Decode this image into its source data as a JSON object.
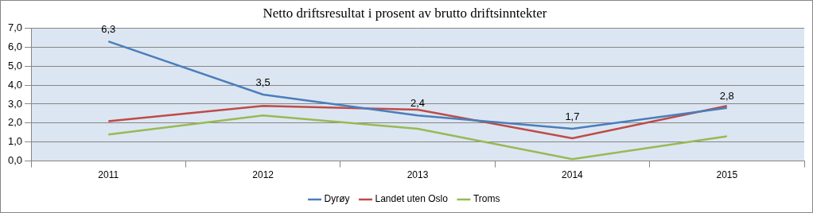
{
  "chart_data": {
    "type": "line",
    "title": "Netto driftsresultat i prosent av brutto driftsinntekter",
    "categories": [
      "2011",
      "2012",
      "2013",
      "2014",
      "2015"
    ],
    "series": [
      {
        "name": "Dyrøy",
        "color": "#4a7ebb",
        "values": [
          6.3,
          3.5,
          2.4,
          1.7,
          2.8
        ],
        "data_labels": true,
        "value_labels": [
          "6,3",
          "3,5",
          "2,4",
          "1,7",
          "2,8"
        ]
      },
      {
        "name": "Landet uten Oslo",
        "color": "#be4b48",
        "values": [
          2.1,
          2.9,
          2.7,
          1.2,
          2.9
        ]
      },
      {
        "name": "Troms",
        "color": "#98b954",
        "values": [
          1.4,
          2.4,
          1.7,
          0.1,
          1.3
        ]
      }
    ],
    "ylim": [
      0,
      7
    ],
    "yticks": [
      {
        "value": 0,
        "label": "0,0"
      },
      {
        "value": 1,
        "label": "1,0"
      },
      {
        "value": 2,
        "label": "2,0"
      },
      {
        "value": 3,
        "label": "3,0"
      },
      {
        "value": 4,
        "label": "4,0"
      },
      {
        "value": 5,
        "label": "5,0"
      },
      {
        "value": 6,
        "label": "6,0"
      },
      {
        "value": 7,
        "label": "7,0"
      }
    ],
    "grid": true,
    "legend": "bottom"
  }
}
